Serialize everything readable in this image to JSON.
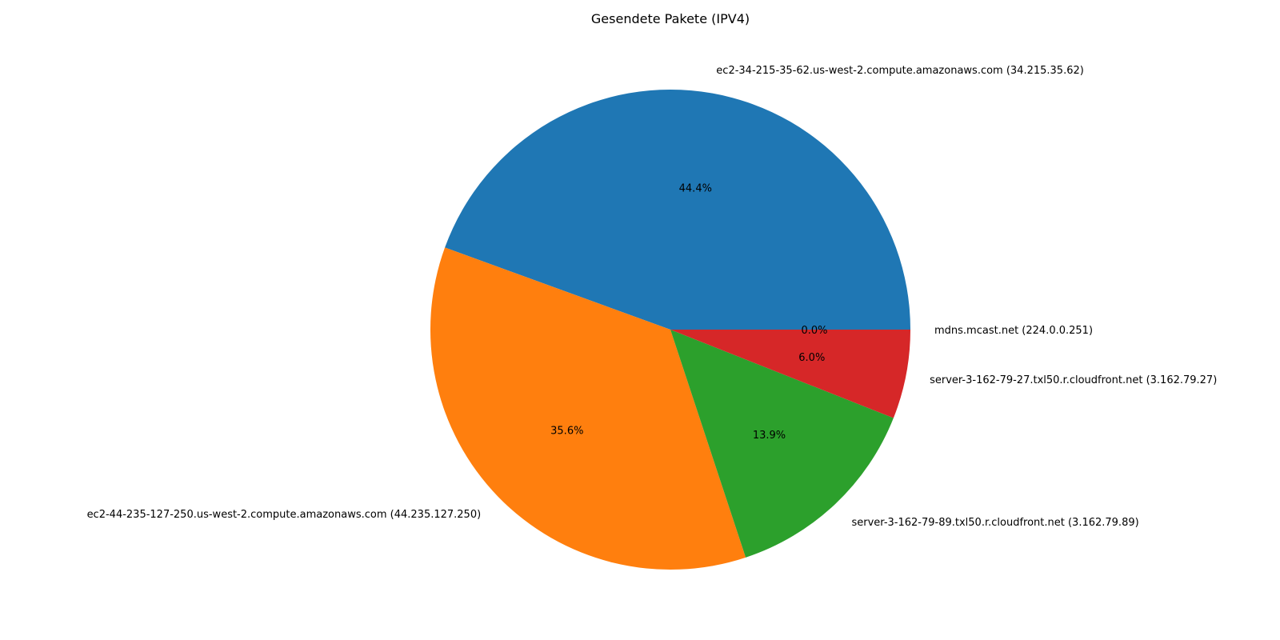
{
  "chart_data": {
    "type": "pie",
    "title": "Gesendete Pakete (IPV4)",
    "start_angle_deg": 0,
    "direction": "counterclockwise",
    "slices": [
      {
        "label": "ec2-34-215-35-62.us-west-2.compute.amazonaws.com (34.215.35.62)",
        "value": 44.4,
        "pct_label": "44.4%",
        "color": "#1f77b4"
      },
      {
        "label": "ec2-44-235-127-250.us-west-2.compute.amazonaws.com (44.235.127.250)",
        "value": 35.6,
        "pct_label": "35.6%",
        "color": "#ff7f0e"
      },
      {
        "label": "server-3-162-79-89.txl50.r.cloudfront.net (3.162.79.89)",
        "value": 13.9,
        "pct_label": "13.9%",
        "color": "#2ca02c"
      },
      {
        "label": "server-3-162-79-27.txl50.r.cloudfront.net (3.162.79.27)",
        "value": 6.0,
        "pct_label": "6.0%",
        "color": "#d62728"
      },
      {
        "label": "mdns.mcast.net (224.0.0.251)",
        "value": 0.0,
        "pct_label": "0.0%",
        "color": "#9467bd"
      }
    ]
  }
}
